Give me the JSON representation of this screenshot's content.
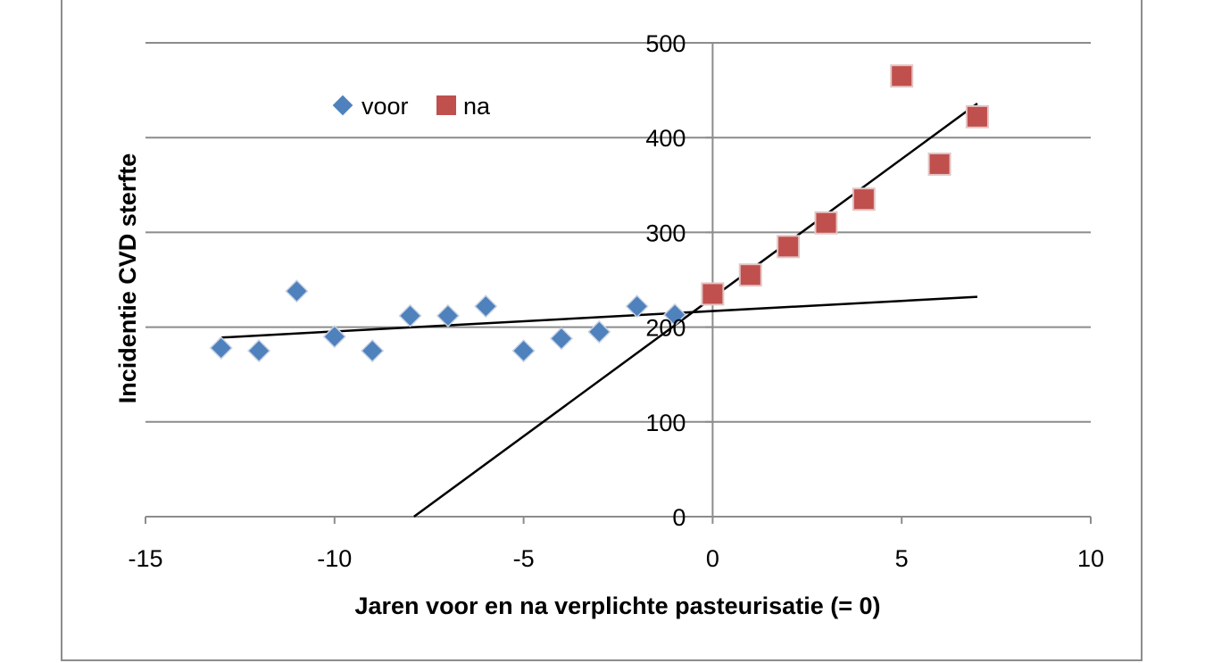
{
  "chart_data": {
    "type": "scatter",
    "title": "",
    "xlabel": "Jaren voor en na verplichte pasteurisatie (= 0)",
    "ylabel": "Incidentie CVD sterfte",
    "xlim": [
      -15,
      10
    ],
    "ylim": [
      0,
      500
    ],
    "x_ticks": [
      "-15",
      "-10",
      "-5",
      "0",
      "5",
      "10"
    ],
    "y_ticks": [
      "0",
      "100",
      "200",
      "300",
      "400",
      "500"
    ],
    "grid": "horizontal",
    "legend_position": "top-left",
    "series": [
      {
        "name": "voor",
        "marker": "diamond",
        "color": "#4f81bd",
        "x": [
          -13,
          -12,
          -11,
          -10,
          -9,
          -8,
          -7,
          -6,
          -5,
          -4,
          -3,
          -2,
          -1
        ],
        "y": [
          178,
          175,
          238,
          190,
          175,
          212,
          212,
          222,
          175,
          188,
          195,
          222,
          213
        ]
      },
      {
        "name": "na",
        "marker": "square",
        "color": "#c0504d",
        "x": [
          0,
          1,
          2,
          3,
          4,
          5,
          6,
          7
        ],
        "y": [
          235,
          255,
          285,
          310,
          335,
          465,
          372,
          422
        ]
      }
    ],
    "trendlines": [
      {
        "series": "voor",
        "color": "#000000",
        "x": [
          -13,
          7
        ],
        "y": [
          189,
          232
        ]
      },
      {
        "series": "na",
        "color": "#000000",
        "x": [
          -7.9,
          7
        ],
        "y": [
          0,
          436
        ]
      }
    ]
  }
}
